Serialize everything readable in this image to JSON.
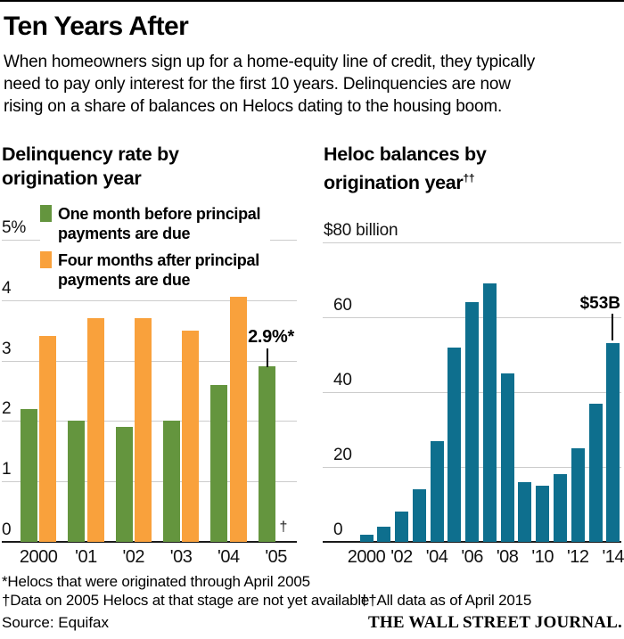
{
  "colors": {
    "green": "#64953e",
    "orange": "#f9a13c",
    "teal": "#0e6f8e",
    "gridline": "#cccccc",
    "axis": "#1a1a1a"
  },
  "header": {
    "title": "Ten Years After",
    "subtitle": "When homeowners sign up for a home-equity line of credit, they typically\nneed to pay only interest for the first 10 years. Delinquencies are now\nrising on a share of balances on Helocs dating to the housing boom."
  },
  "chart_data": [
    {
      "type": "bar",
      "title": "Delinquency rate by\norigination year",
      "categories": [
        "2000",
        "'01",
        "'02",
        "'03",
        "'04",
        "'05"
      ],
      "series": [
        {
          "name": "One month before principal\npayments are due",
          "color": "green",
          "values": [
            2.2,
            2.0,
            1.9,
            2.0,
            2.6,
            2.9
          ]
        },
        {
          "name": "Four months after principal\npayments are due",
          "color": "orange",
          "values": [
            3.4,
            3.7,
            3.7,
            3.5,
            4.2,
            null
          ]
        }
      ],
      "ylim": [
        0,
        5
      ],
      "yticks": [
        {
          "label": "5%",
          "value": 5
        },
        {
          "label": "4",
          "value": 4
        },
        {
          "label": "3",
          "value": 3
        },
        {
          "label": "2",
          "value": 2
        },
        {
          "label": "1",
          "value": 1
        },
        {
          "label": "0",
          "value": 0
        }
      ],
      "grid": true,
      "legend_position": "top-inside",
      "annotation": {
        "text": "2.9%*",
        "series": 0,
        "category": "'05"
      },
      "note_marker": {
        "text": "†",
        "category": "'05",
        "series": 1
      }
    },
    {
      "type": "bar",
      "title": "Heloc balances by\norigination year",
      "title_sup": "††",
      "categories": [
        "2000",
        "'01",
        "'02",
        "'03",
        "'04",
        "'05",
        "'06",
        "'07",
        "'08",
        "'09",
        "'10",
        "'11",
        "'12",
        "'13",
        "'14"
      ],
      "color": "teal",
      "values": [
        2,
        4,
        8,
        14,
        27,
        52,
        64,
        69,
        45,
        16,
        15,
        18,
        25,
        37,
        53
      ],
      "ylim": [
        0,
        80
      ],
      "yticks": [
        {
          "label": "$80 billion",
          "value": 80
        },
        {
          "label": "60",
          "value": 60
        },
        {
          "label": "40",
          "value": 40
        },
        {
          "label": "20",
          "value": 20
        },
        {
          "label": "0",
          "value": 0
        }
      ],
      "x_ticks": [
        {
          "label": "2000",
          "index": 0
        },
        {
          "label": "'02",
          "index": 2
        },
        {
          "label": "'04",
          "index": 4
        },
        {
          "label": "'06",
          "index": 6
        },
        {
          "label": "'08",
          "index": 8
        },
        {
          "label": "'10",
          "index": 10
        },
        {
          "label": "'12",
          "index": 12
        },
        {
          "label": "'14",
          "index": 14
        }
      ],
      "grid": true,
      "annotation": {
        "text": "$53B",
        "category": "'14"
      }
    }
  ],
  "footer": {
    "footnote1": "*Helocs that were originated through April 2005",
    "footnote2a": "†Data on 2005 Helocs at that stage are not yet available",
    "footnote2b": "††All data as of April 2015",
    "source": "Source: Equifax",
    "brand": "THE WALL STREET JOURNAL."
  }
}
